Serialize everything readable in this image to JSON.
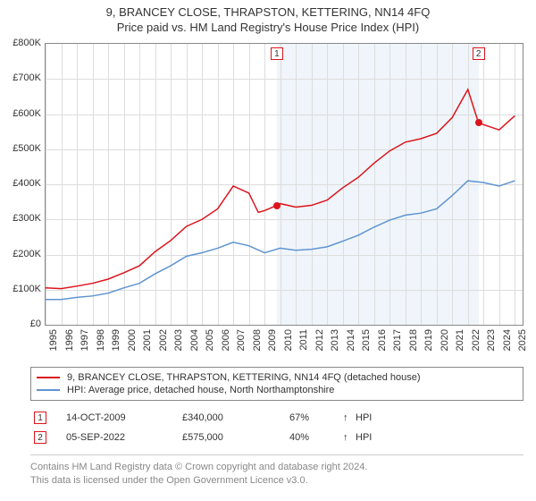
{
  "title": "9, BRANCEY CLOSE, THRAPSTON, KETTERING, NN14 4FQ",
  "subtitle": "Price paid vs. HM Land Registry's House Price Index (HPI)",
  "chart": {
    "type": "line",
    "background_color": "#ffffff",
    "grid_color": "#dddddd",
    "axis_color": "#888888",
    "shade_color": "#edf4fa",
    "xlim": [
      1995,
      2025.5
    ],
    "ylim": [
      0,
      800000
    ],
    "ytick_step": 100000,
    "yticks": [
      "£0",
      "£100K",
      "£200K",
      "£300K",
      "£400K",
      "£500K",
      "£600K",
      "£700K",
      "£800K"
    ],
    "xticks": [
      "1995",
      "1996",
      "1997",
      "1998",
      "1999",
      "2000",
      "2001",
      "2002",
      "2003",
      "2004",
      "2005",
      "2006",
      "2007",
      "2008",
      "2009",
      "2010",
      "2011",
      "2012",
      "2013",
      "2014",
      "2015",
      "2016",
      "2017",
      "2018",
      "2019",
      "2020",
      "2021",
      "2022",
      "2023",
      "2024",
      "2025"
    ],
    "series": [
      {
        "name": "property",
        "label": "9, BRANCEY CLOSE, THRAPSTON, KETTERING, NN14 4FQ (detached house)",
        "color": "#dc141c",
        "line_width": 1.5,
        "data": [
          [
            1995,
            105000
          ],
          [
            1996,
            103000
          ],
          [
            1997,
            110000
          ],
          [
            1998,
            118000
          ],
          [
            1999,
            130000
          ],
          [
            2000,
            148000
          ],
          [
            2001,
            168000
          ],
          [
            2002,
            208000
          ],
          [
            2003,
            240000
          ],
          [
            2004,
            280000
          ],
          [
            2005,
            300000
          ],
          [
            2006,
            330000
          ],
          [
            2007,
            395000
          ],
          [
            2008,
            375000
          ],
          [
            2008.6,
            320000
          ],
          [
            2009,
            325000
          ],
          [
            2009.79,
            340000
          ],
          [
            2010,
            345000
          ],
          [
            2011,
            335000
          ],
          [
            2012,
            340000
          ],
          [
            2013,
            355000
          ],
          [
            2014,
            390000
          ],
          [
            2015,
            420000
          ],
          [
            2016,
            460000
          ],
          [
            2017,
            495000
          ],
          [
            2018,
            520000
          ],
          [
            2019,
            530000
          ],
          [
            2020,
            545000
          ],
          [
            2021,
            590000
          ],
          [
            2022,
            670000
          ],
          [
            2022.68,
            575000
          ],
          [
            2023,
            570000
          ],
          [
            2024,
            555000
          ],
          [
            2025,
            595000
          ]
        ]
      },
      {
        "name": "hpi",
        "label": "HPI: Average price, detached house, North Northamptonshire",
        "color": "#6094d0",
        "line_width": 1.5,
        "data": [
          [
            1995,
            72000
          ],
          [
            1996,
            72000
          ],
          [
            1997,
            78000
          ],
          [
            1998,
            82000
          ],
          [
            1999,
            90000
          ],
          [
            2000,
            105000
          ],
          [
            2001,
            118000
          ],
          [
            2002,
            145000
          ],
          [
            2003,
            168000
          ],
          [
            2004,
            195000
          ],
          [
            2005,
            205000
          ],
          [
            2006,
            218000
          ],
          [
            2007,
            235000
          ],
          [
            2008,
            225000
          ],
          [
            2009,
            205000
          ],
          [
            2010,
            218000
          ],
          [
            2011,
            212000
          ],
          [
            2012,
            215000
          ],
          [
            2013,
            222000
          ],
          [
            2014,
            238000
          ],
          [
            2015,
            255000
          ],
          [
            2016,
            278000
          ],
          [
            2017,
            298000
          ],
          [
            2018,
            312000
          ],
          [
            2019,
            318000
          ],
          [
            2020,
            330000
          ],
          [
            2021,
            368000
          ],
          [
            2022,
            410000
          ],
          [
            2023,
            405000
          ],
          [
            2024,
            395000
          ],
          [
            2025,
            410000
          ]
        ]
      }
    ],
    "shaded_ranges": [
      {
        "from": 2009.79,
        "to": 2022.68
      }
    ],
    "markers": [
      {
        "n": "1",
        "x": 2009.79,
        "y": 340000
      },
      {
        "n": "2",
        "x": 2022.68,
        "y": 575000
      }
    ]
  },
  "legend": {
    "items": [
      {
        "color": "#dc141c",
        "label": "9, BRANCEY CLOSE, THRAPSTON, KETTERING, NN14 4FQ (detached house)"
      },
      {
        "color": "#6094d0",
        "label": "HPI: Average price, detached house, North Northamptonshire"
      }
    ]
  },
  "transactions": [
    {
      "n": "1",
      "date": "14-OCT-2009",
      "price": "£340,000",
      "pct": "67%",
      "arrow": "↑",
      "vs": "HPI"
    },
    {
      "n": "2",
      "date": "05-SEP-2022",
      "price": "£575,000",
      "pct": "40%",
      "arrow": "↑",
      "vs": "HPI"
    }
  ],
  "footer": {
    "line1": "Contains HM Land Registry data © Crown copyright and database right 2024.",
    "line2": "This data is licensed under the Open Government Licence v3.0."
  },
  "typography": {
    "title_fontsize": 13,
    "label_fontsize": 11,
    "text_color": "#333333",
    "footer_color": "#888888"
  }
}
